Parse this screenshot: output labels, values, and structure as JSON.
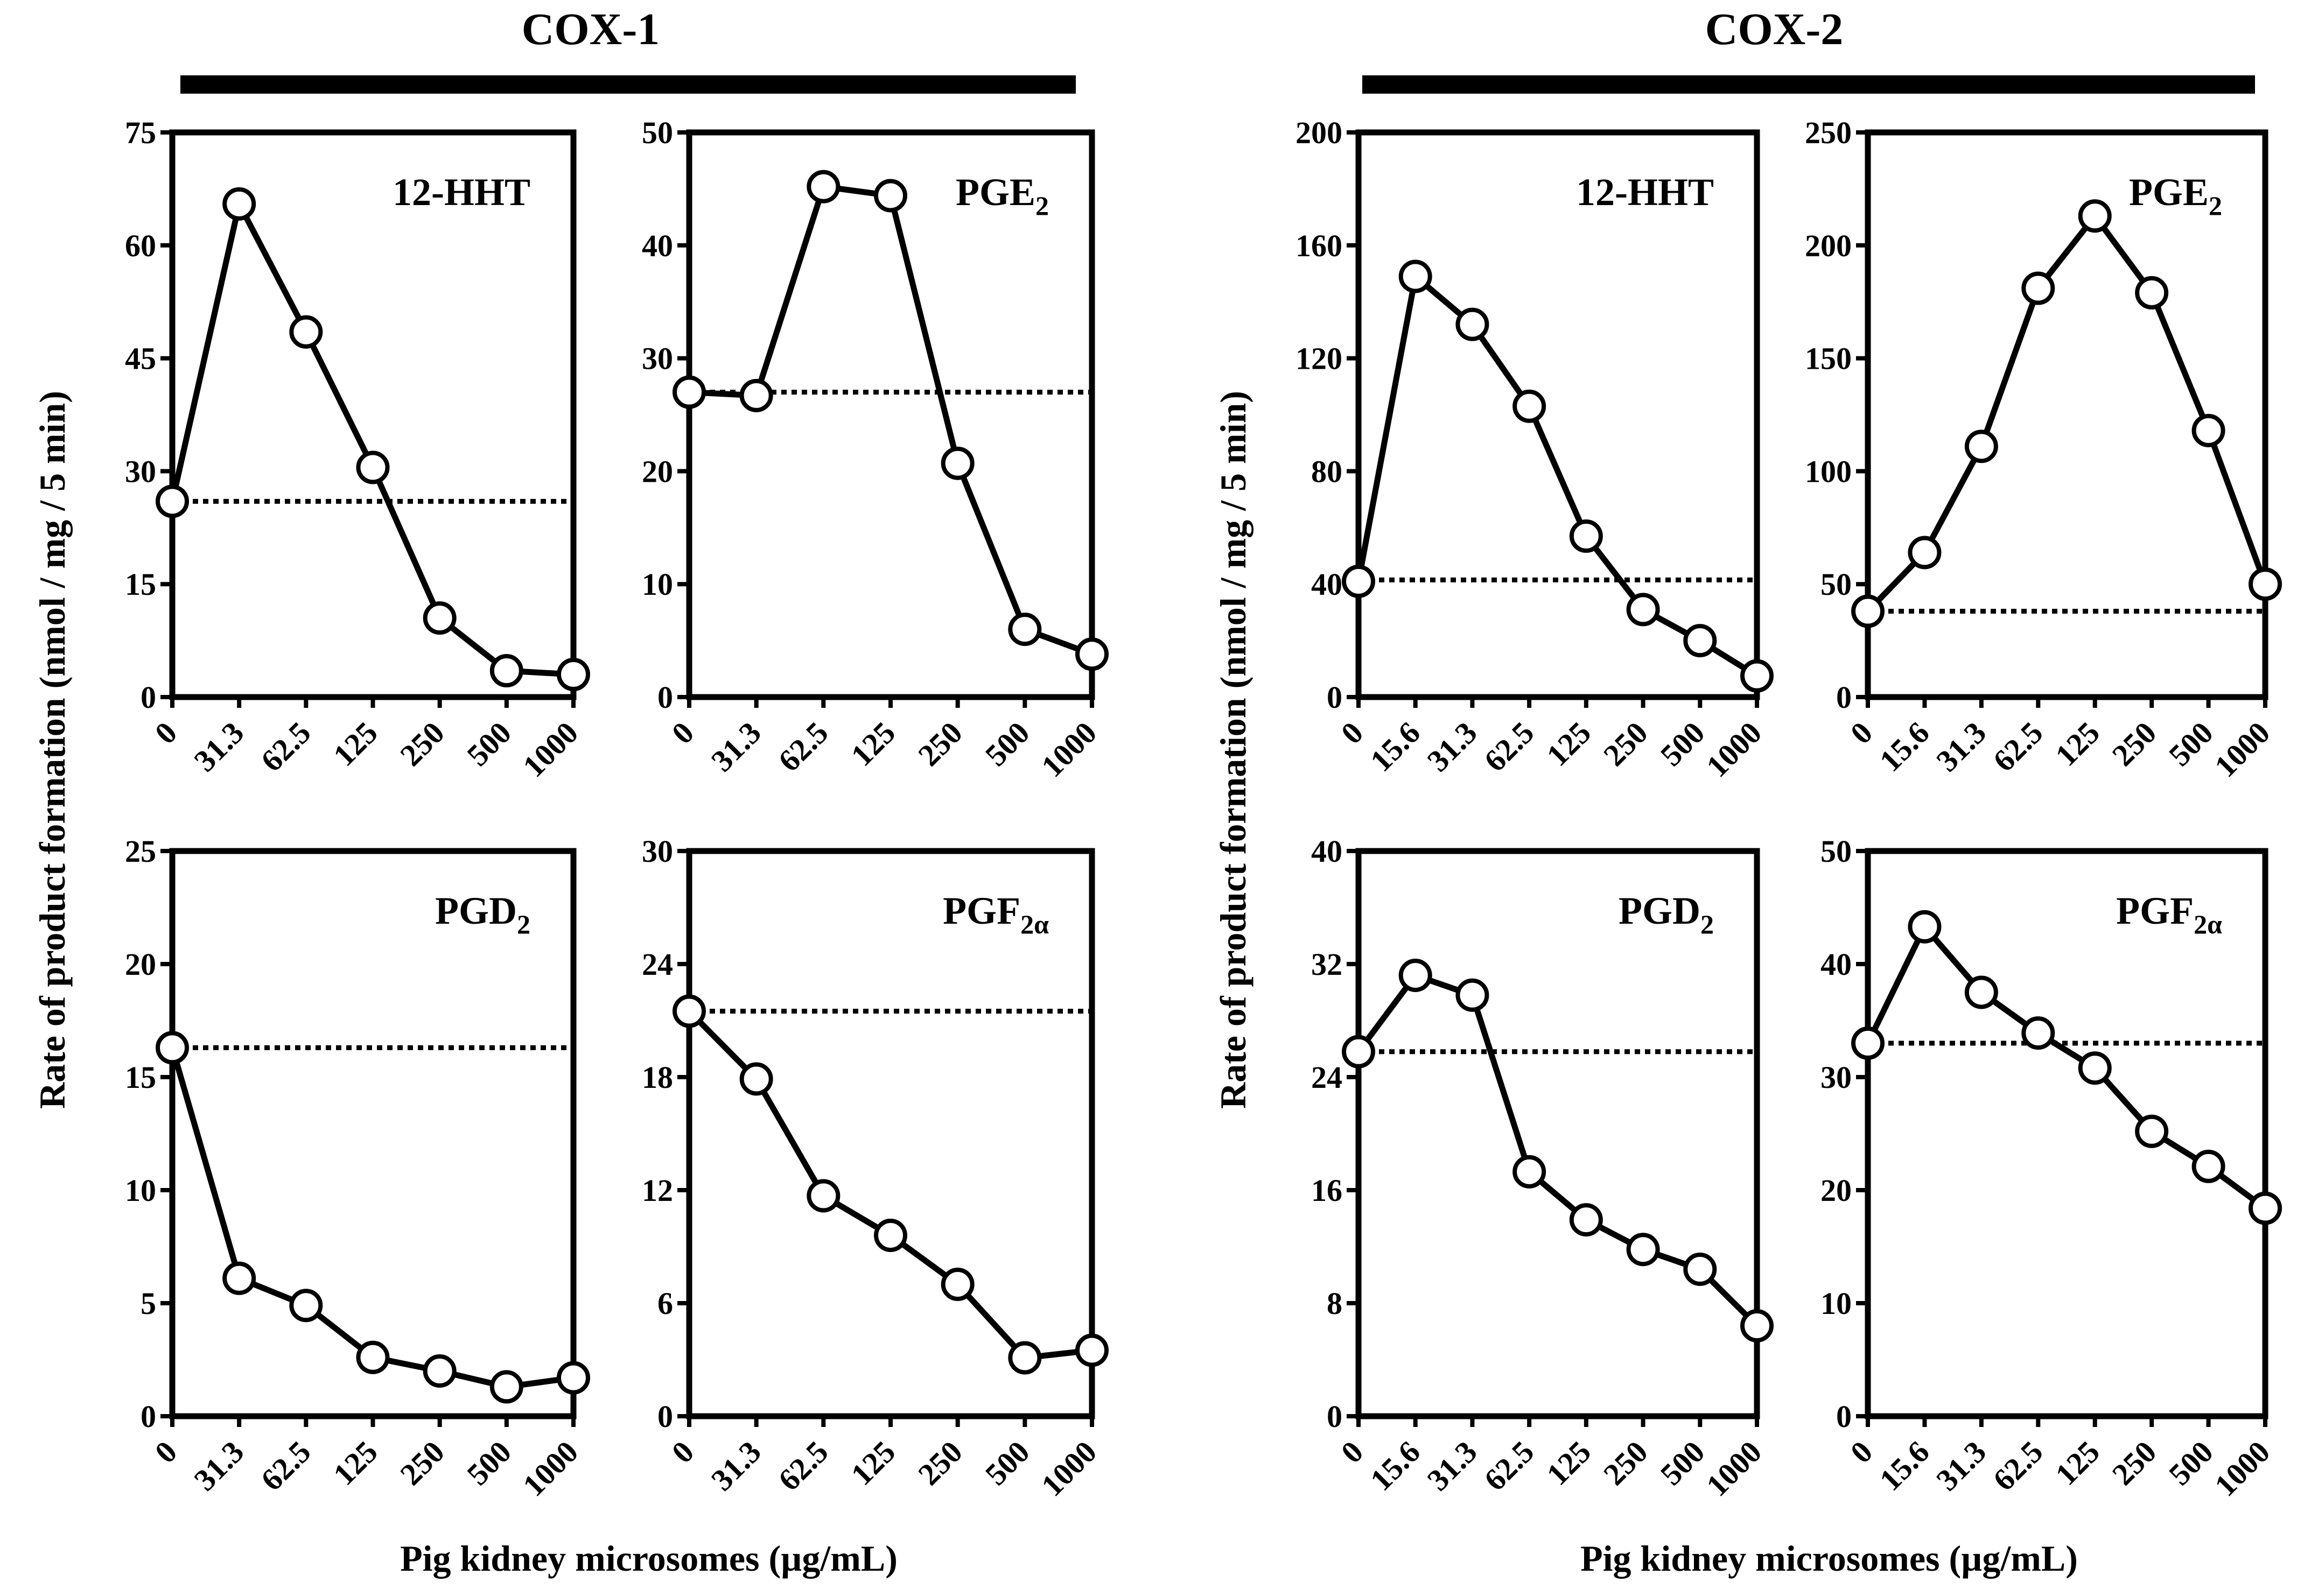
{
  "group_titles": [
    "COX-1",
    "COX-2"
  ],
  "ylabel": "Rate of product formation (nmol / mg / 5 min)",
  "xlabel": "Pig kidney microsomes (µg/mL)",
  "chart_data": [
    {
      "type": "line",
      "group": "COX-1",
      "title": "12-HHT",
      "title_main": "12-HHT",
      "title_sub": "",
      "categories": [
        "0",
        "31.3",
        "62.5",
        "125",
        "250",
        "500",
        "1000"
      ],
      "values": [
        26,
        65.5,
        48.5,
        30.5,
        10.5,
        3.5,
        3
      ],
      "control_level": 26,
      "ylim": [
        0,
        75
      ],
      "yticks": [
        0,
        15,
        30,
        45,
        60,
        75
      ]
    },
    {
      "type": "line",
      "group": "COX-1",
      "title": "PGE2",
      "title_main": "PGE",
      "title_sub": "2",
      "categories": [
        "0",
        "31.3",
        "62.5",
        "125",
        "250",
        "500",
        "1000"
      ],
      "values": [
        27,
        26.7,
        45.2,
        44.4,
        20.7,
        6,
        3.8
      ],
      "control_level": 27,
      "ylim": [
        0,
        50
      ],
      "yticks": [
        0,
        10,
        20,
        30,
        40,
        50
      ]
    },
    {
      "type": "line",
      "group": "COX-1",
      "title": "PGD2",
      "title_main": "PGD",
      "title_sub": "2",
      "categories": [
        "0",
        "31.3",
        "62.5",
        "125",
        "250",
        "500",
        "1000"
      ],
      "values": [
        16.3,
        6.1,
        4.9,
        2.6,
        2,
        1.3,
        1.7
      ],
      "control_level": 16.3,
      "ylim": [
        0,
        25
      ],
      "yticks": [
        0,
        5,
        10,
        15,
        20,
        25
      ]
    },
    {
      "type": "line",
      "group": "COX-1",
      "title": "PGF2α",
      "title_main": "PGF",
      "title_sub": "2α",
      "categories": [
        "0",
        "31.3",
        "62.5",
        "125",
        "250",
        "500",
        "1000"
      ],
      "values": [
        21.5,
        17.9,
        11.7,
        9.6,
        7,
        3.1,
        3.5
      ],
      "control_level": 21.5,
      "ylim": [
        0,
        30
      ],
      "yticks": [
        0,
        6,
        12,
        18,
        24,
        30
      ]
    },
    {
      "type": "line",
      "group": "COX-2",
      "title": "12-HHT",
      "title_main": "12-HHT",
      "title_sub": "",
      "categories": [
        "0",
        "15.6",
        "31.3",
        "62.5",
        "125",
        "250",
        "500",
        "1000"
      ],
      "values": [
        41,
        149,
        132,
        103,
        57,
        31,
        20,
        7.5
      ],
      "control_level": 41.5,
      "ylim": [
        0,
        200
      ],
      "yticks": [
        0,
        40,
        80,
        120,
        160,
        200
      ]
    },
    {
      "type": "line",
      "group": "COX-2",
      "title": "PGE2",
      "title_main": "PGE",
      "title_sub": "2",
      "categories": [
        "0",
        "15.6",
        "31.3",
        "62.5",
        "125",
        "250",
        "500",
        "1000"
      ],
      "values": [
        38,
        64,
        111,
        181,
        213,
        179,
        118,
        50
      ],
      "control_level": 38,
      "ylim": [
        0,
        250
      ],
      "yticks": [
        0,
        50,
        100,
        150,
        200,
        250
      ]
    },
    {
      "type": "line",
      "group": "COX-2",
      "title": "PGD2",
      "title_main": "PGD",
      "title_sub": "2",
      "categories": [
        "0",
        "15.6",
        "31.3",
        "62.5",
        "125",
        "250",
        "500",
        "1000"
      ],
      "values": [
        25.8,
        31.2,
        29.8,
        17.3,
        13.9,
        11.8,
        10.4,
        6.4
      ],
      "control_level": 25.8,
      "ylim": [
        0,
        40
      ],
      "yticks": [
        0,
        8,
        16,
        24,
        32,
        40
      ]
    },
    {
      "type": "line",
      "group": "COX-2",
      "title": "PGF2α",
      "title_main": "PGF",
      "title_sub": "2α",
      "categories": [
        "0",
        "15.6",
        "31.3",
        "62.5",
        "125",
        "250",
        "500",
        "1000"
      ],
      "values": [
        33,
        43.3,
        37.5,
        33.9,
        30.8,
        25.2,
        22.1,
        18.4
      ],
      "control_level": 33,
      "ylim": [
        0,
        50
      ],
      "yticks": [
        0,
        10,
        20,
        30,
        40,
        50
      ]
    }
  ]
}
